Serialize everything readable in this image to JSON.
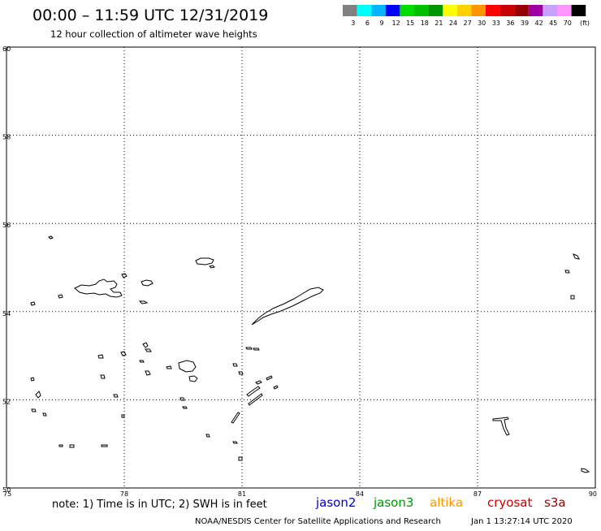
{
  "header": {
    "title": "00:00 – 11:59 UTC 12/31/2019",
    "subtitle": "12 hour collection of altimeter wave heights"
  },
  "legend": {
    "unit": "(ft)",
    "items": [
      {
        "label": "3",
        "color": "#808080"
      },
      {
        "label": "6",
        "color": "#00ffff"
      },
      {
        "label": "9",
        "color": "#00b4ff"
      },
      {
        "label": "12",
        "color": "#0000ff"
      },
      {
        "label": "15",
        "color": "#00dc00"
      },
      {
        "label": "18",
        "color": "#00be00"
      },
      {
        "label": "21",
        "color": "#009600"
      },
      {
        "label": "24",
        "color": "#ffff00"
      },
      {
        "label": "27",
        "color": "#ffd200"
      },
      {
        "label": "30",
        "color": "#ff9600"
      },
      {
        "label": "33",
        "color": "#ff0000"
      },
      {
        "label": "36",
        "color": "#c80000"
      },
      {
        "label": "39",
        "color": "#960000"
      },
      {
        "label": "42",
        "color": "#a000a0"
      },
      {
        "label": "45",
        "color": "#c8a0ff"
      },
      {
        "label": "70",
        "color": "#ff96ff"
      },
      {
        "label": "",
        "color": "#000000"
      }
    ]
  },
  "chart_data": {
    "type": "map",
    "title": "00:00 – 11:59 UTC 12/31/2019",
    "xlim": [
      75,
      90
    ],
    "ylim": [
      50,
      60
    ],
    "x_ticks": [
      "75",
      "78",
      "81",
      "84",
      "87",
      "90"
    ],
    "y_ticks": [
      "50",
      "52",
      "54",
      "56",
      "58",
      "60"
    ],
    "grid": true,
    "series": [
      {
        "name": "jason2",
        "color": "#0000cc",
        "values": []
      },
      {
        "name": "jason3",
        "color": "#009600",
        "values": []
      },
      {
        "name": "altika",
        "color": "#ff9600",
        "values": []
      },
      {
        "name": "cryosat",
        "color": "#c80000",
        "values": []
      },
      {
        "name": "s3a",
        "color": "#960000",
        "values": []
      }
    ]
  },
  "footer": {
    "note": "note: 1) Time is in UTC; 2) SWH is in feet",
    "credit": "NOAA/NESDIS Center for Satellite Applications and Research",
    "timestamp": "Jan  1 13:27:14 UTC 2020"
  }
}
